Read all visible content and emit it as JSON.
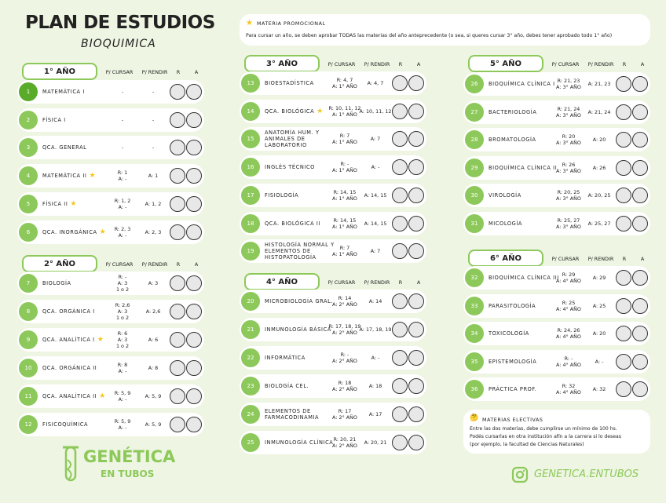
{
  "header": {
    "title": "PLAN DE ESTUDIOS",
    "subtitle": "BIOQUIMICA"
  },
  "legend": {
    "label": "MATERIA PROMOCIONAL",
    "note": "Para cursar un año, se deben aprobar TODAS las materias del año anteprecedente (o sea, si queres cursar 3° año, debes tener aprobado todo 1° año)"
  },
  "years": [
    {
      "title": "1° AÑO",
      "headers": [
        "P/ CURSAR",
        "P/ RENDIR",
        "R",
        "A"
      ],
      "subjects": [
        {
          "number": "1",
          "name": "MATEMÁTICA I",
          "promocional": false,
          "cursar": [
            "-"
          ],
          "rendir": "-"
        },
        {
          "number": "2",
          "name": "FÍSICA I",
          "promocional": false,
          "cursar": [
            "-"
          ],
          "rendir": "-"
        },
        {
          "number": "3",
          "name": "QCA. GENERAL",
          "promocional": false,
          "cursar": [
            "-"
          ],
          "rendir": "-"
        },
        {
          "number": "4",
          "name": "MATEMÁTICA II",
          "promocional": true,
          "cursar": [
            "R: 1",
            "A: -"
          ],
          "rendir": "A: 1"
        },
        {
          "number": "5",
          "name": "FÍSICA II",
          "promocional": true,
          "cursar": [
            "R: 1, 2",
            "A: -"
          ],
          "rendir": "A: 1, 2"
        },
        {
          "number": "6",
          "name": "QCA. INORGÁNICA",
          "promocional": true,
          "cursar": [
            "R: 2, 3",
            "A: -"
          ],
          "rendir": "A: 2, 3"
        }
      ]
    },
    {
      "title": "2° AÑO",
      "headers": [
        "P/ CURSAR",
        "P/ RENDIR",
        "R",
        "A"
      ],
      "subjects": [
        {
          "number": "7",
          "name": "BIOLOGÍA",
          "promocional": false,
          "cursar": [
            "R: -",
            "A: 3",
            "1 o 2"
          ],
          "rendir": "A: 3"
        },
        {
          "number": "8",
          "name": "QCA. ORGÁNICA I",
          "promocional": false,
          "cursar": [
            "R: 2,6",
            "A: 3",
            "1 o 2"
          ],
          "rendir": "A: 2,6"
        },
        {
          "number": "9",
          "name": "QCA. ANALÍTICA I",
          "promocional": true,
          "cursar": [
            "R: 6",
            "A: 3",
            "1 o 2"
          ],
          "rendir": "A: 6"
        },
        {
          "number": "10",
          "name": "QCA. ORGÁNICA II",
          "promocional": false,
          "cursar": [
            "R: 8",
            "A: -"
          ],
          "rendir": "A: 8"
        },
        {
          "number": "11",
          "name": "QCA. ANALÍTICA II",
          "promocional": true,
          "cursar": [
            "R: 5, 9",
            "A: -"
          ],
          "rendir": "A: 5, 9"
        },
        {
          "number": "12",
          "name": "FISICOQUÍMICA",
          "promocional": false,
          "cursar": [
            "R: 5, 9",
            "A: -"
          ],
          "rendir": "A: 5, 9"
        }
      ]
    },
    {
      "title": "3° AÑO",
      "headers": [
        "P/ CURSAR",
        "P/ RENDIR",
        "R",
        "A"
      ],
      "subjects": [
        {
          "number": "13",
          "name": "BIOESTADÍSTICA",
          "promocional": false,
          "cursar": [
            "R: 4, 7",
            "A: 1° AÑO"
          ],
          "rendir": "A: 4, 7"
        },
        {
          "number": "14",
          "name": "QCA. BIOLÓGICA",
          "promocional": true,
          "cursar": [
            "R: 10, 11, 12",
            "A: 1° AÑO"
          ],
          "rendir": "A: 10, 11, 12"
        },
        {
          "number": "15",
          "name": "ANATOMÍA HUM. Y ANIMALES DE LABORATORIO",
          "promocional": false,
          "cursar": [
            "R: 7",
            "A: 1° AÑO"
          ],
          "rendir": "A: 7"
        },
        {
          "number": "16",
          "name": "INGLÉS TÉCNICO",
          "promocional": false,
          "cursar": [
            "R: -",
            "A: 1° AÑO"
          ],
          "rendir": "A: -"
        },
        {
          "number": "17",
          "name": "FISIOLOGÍA",
          "promocional": false,
          "cursar": [
            "R: 14, 15",
            "A: 1° AÑO"
          ],
          "rendir": "A: 14, 15"
        },
        {
          "number": "18",
          "name": "QCA. BIOLÓGICA II",
          "promocional": false,
          "cursar": [
            "R: 14, 15",
            "A: 1° AÑO"
          ],
          "rendir": "A: 14, 15"
        },
        {
          "number": "19",
          "name": "HISTOLOGÍA NORMAL Y ELEMENTOS DE HISTOPATOLOGÍA",
          "promocional": false,
          "cursar": [
            "R: 7",
            "A: 1° AÑO"
          ],
          "rendir": "A: 7"
        }
      ]
    },
    {
      "title": "4° AÑO",
      "headers": [
        "P/ CURSAR",
        "P/ RENDIR",
        "R",
        "A"
      ],
      "subjects": [
        {
          "number": "20",
          "name": "MICROBIOLOGÍA GRAL.",
          "promocional": false,
          "cursar": [
            "R: 14",
            "A: 2° AÑO"
          ],
          "rendir": "A: 14"
        },
        {
          "number": "21",
          "name": "INMUNOLOGÍA BÁSICA",
          "promocional": false,
          "cursar": [
            "R: 17, 18, 19",
            "A: 2° AÑO"
          ],
          "rendir": "A: 17, 18, 19"
        },
        {
          "number": "22",
          "name": "INFORMÁTICA",
          "promocional": false,
          "cursar": [
            "R: -",
            "A: 2° AÑO"
          ],
          "rendir": "A: -"
        },
        {
          "number": "23",
          "name": "BIOLOGÍA CEL.",
          "promocional": false,
          "cursar": [
            "R: 18",
            "A: 2° AÑO"
          ],
          "rendir": "A: 18"
        },
        {
          "number": "24",
          "name": "ELEMENTOS DE FARMACODINAMIA",
          "promocional": false,
          "cursar": [
            "R: 17",
            "A: 2° AÑO"
          ],
          "rendir": "A: 17"
        },
        {
          "number": "25",
          "name": "INMUNOLOGÍA CLÍNICA",
          "promocional": false,
          "cursar": [
            "R: 20, 21",
            "A: 2° AÑO"
          ],
          "rendir": "A: 20, 21"
        }
      ]
    },
    {
      "title": "5° AÑO",
      "headers": [
        "P/ CURSAR",
        "P/ RENDIR",
        "R",
        "A"
      ],
      "subjects": [
        {
          "number": "26",
          "name": "BIOQUÍMICA CLÍNICA I",
          "promocional": false,
          "cursar": [
            "R: 21, 23",
            "A: 3° AÑO"
          ],
          "rendir": "A: 21, 23"
        },
        {
          "number": "27",
          "name": "BACTERIOLOGÍA",
          "promocional": false,
          "cursar": [
            "R: 21, 24",
            "A: 3° AÑO"
          ],
          "rendir": "A: 21, 24"
        },
        {
          "number": "28",
          "name": "BROMATOLOGÍA",
          "promocional": false,
          "cursar": [
            "R: 20",
            "A: 3° AÑO"
          ],
          "rendir": "A: 20"
        },
        {
          "number": "29",
          "name": "BIOQUÍMICA CLÍNICA II",
          "promocional": false,
          "cursar": [
            "R: 26",
            "A: 3° AÑO"
          ],
          "rendir": "A: 26"
        },
        {
          "number": "30",
          "name": "VIROLOGÍA",
          "promocional": false,
          "cursar": [
            "R: 20, 25",
            "A: 3° AÑO"
          ],
          "rendir": "A: 20, 25"
        },
        {
          "number": "31",
          "name": "MICOLOGÍA",
          "promocional": false,
          "cursar": [
            "R: 25, 27",
            "A: 3° AÑO"
          ],
          "rendir": "A: 25, 27"
        }
      ]
    },
    {
      "title": "6° AÑO",
      "headers": [
        "P/ CURSAR",
        "P/ RENDIR",
        "R",
        "A"
      ],
      "subjects": [
        {
          "number": "32",
          "name": "BIOQUÍMICA CLÍNICA III",
          "promocional": false,
          "cursar": [
            "R: 29",
            "A: 4° AÑO"
          ],
          "rendir": "A: 29"
        },
        {
          "number": "33",
          "name": "PARASITOLOGÍA",
          "promocional": false,
          "cursar": [
            "R: 25",
            "A: 4° AÑO"
          ],
          "rendir": "A: 25"
        },
        {
          "number": "34",
          "name": "TOXICOLOGÍA",
          "promocional": false,
          "cursar": [
            "R: 24, 26",
            "A: 4° AÑO"
          ],
          "rendir": "A: 20"
        },
        {
          "number": "35",
          "name": "EPISTEMOLOGÍA",
          "promocional": false,
          "cursar": [
            "R: -",
            "A: 4° AÑO"
          ],
          "rendir": "A: -"
        },
        {
          "number": "36",
          "name": "PRÁCTICA PROF.",
          "promocional": false,
          "cursar": [
            "R: 32",
            "A: 4° AÑO"
          ],
          "rendir": "A: 32"
        }
      ]
    }
  ],
  "electivas": {
    "title": "MATERIAS ELECTIVAS",
    "lines": [
      "Entre las dos materias, debe cumplirse un mínimo de 100 hs.",
      "Podés cursarlas en otra institución afín a la carrera si lo deseas",
      "(por ejemplo, la facultad de Ciencias Naturales)"
    ]
  },
  "footer": {
    "brand": "GENÉTICA",
    "brand_sub": "EN TUBOS",
    "instagram": "GENETICA.ENTUBOS"
  }
}
